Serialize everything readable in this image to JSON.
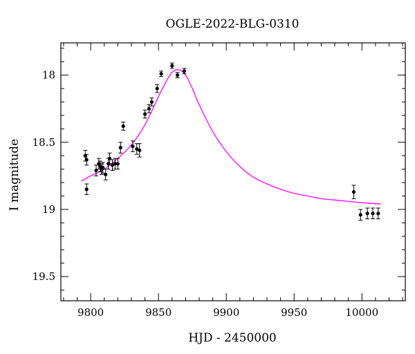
{
  "chart_data": {
    "type": "scatter",
    "title": "OGLE-2022-BLG-0310",
    "xlabel": "HJD - 2450000",
    "ylabel": "I magnitude",
    "xlim": [
      9778,
      10032
    ],
    "ylim": [
      19.68,
      17.76
    ],
    "y_inverted": true,
    "x_ticks": [
      9800,
      9850,
      9900,
      9950,
      10000
    ],
    "y_ticks": [
      18,
      18.5,
      19,
      19.5
    ],
    "x_tick_labels": [
      "9800",
      "9850",
      "9900",
      "9950",
      "10000"
    ],
    "y_tick_labels": [
      "18",
      "18.5",
      "19",
      "19.5"
    ],
    "grid": false,
    "series": [
      {
        "kind": "data_points_with_errorbars",
        "color": "#000000",
        "points": [
          {
            "x": 9796,
            "y": 18.6,
            "err": 0.04
          },
          {
            "x": 9797,
            "y": 18.63,
            "err": 0.04
          },
          {
            "x": 9797,
            "y": 18.85,
            "err": 0.04
          },
          {
            "x": 9804,
            "y": 18.71,
            "err": 0.04
          },
          {
            "x": 9806,
            "y": 18.66,
            "err": 0.04
          },
          {
            "x": 9807,
            "y": 18.68,
            "err": 0.04
          },
          {
            "x": 9808,
            "y": 18.7,
            "err": 0.04
          },
          {
            "x": 9809,
            "y": 18.69,
            "err": 0.04
          },
          {
            "x": 9811,
            "y": 18.74,
            "err": 0.04
          },
          {
            "x": 9813,
            "y": 18.66,
            "err": 0.04
          },
          {
            "x": 9814,
            "y": 18.62,
            "err": 0.04
          },
          {
            "x": 9816,
            "y": 18.67,
            "err": 0.04
          },
          {
            "x": 9818,
            "y": 18.66,
            "err": 0.04
          },
          {
            "x": 9820,
            "y": 18.66,
            "err": 0.04
          },
          {
            "x": 9822,
            "y": 18.54,
            "err": 0.04
          },
          {
            "x": 9824,
            "y": 18.38,
            "err": 0.03
          },
          {
            "x": 9831,
            "y": 18.53,
            "err": 0.04
          },
          {
            "x": 9834,
            "y": 18.55,
            "err": 0.04
          },
          {
            "x": 9836,
            "y": 18.56,
            "err": 0.05
          },
          {
            "x": 9840,
            "y": 18.29,
            "err": 0.03
          },
          {
            "x": 9843,
            "y": 18.25,
            "err": 0.03
          },
          {
            "x": 9845,
            "y": 18.2,
            "err": 0.03
          },
          {
            "x": 9849,
            "y": 18.1,
            "err": 0.03
          },
          {
            "x": 9852,
            "y": 17.99,
            "err": 0.02
          },
          {
            "x": 9860,
            "y": 17.93,
            "err": 0.02
          },
          {
            "x": 9864,
            "y": 18.0,
            "err": 0.02
          },
          {
            "x": 9869,
            "y": 17.97,
            "err": 0.02
          },
          {
            "x": 9994,
            "y": 18.87,
            "err": 0.05
          },
          {
            "x": 9999,
            "y": 19.04,
            "err": 0.04
          },
          {
            "x": 10004,
            "y": 19.03,
            "err": 0.04
          },
          {
            "x": 10008,
            "y": 19.03,
            "err": 0.04
          },
          {
            "x": 10012,
            "y": 19.03,
            "err": 0.04
          }
        ]
      },
      {
        "kind": "model_curve",
        "color": "#ff00ff",
        "x": [
          9793,
          9800,
          9810,
          9820,
          9830,
          9840,
          9850,
          9855,
          9860,
          9865,
          9870,
          9875,
          9880,
          9890,
          9900,
          9910,
          9920,
          9930,
          9940,
          9950,
          9960,
          9970,
          9980,
          9990,
          10000,
          10014
        ],
        "y": [
          18.79,
          18.75,
          18.7,
          18.62,
          18.52,
          18.37,
          18.16,
          18.06,
          17.98,
          17.96,
          18.0,
          18.1,
          18.22,
          18.42,
          18.57,
          18.68,
          18.76,
          18.81,
          18.85,
          18.88,
          18.9,
          18.92,
          18.93,
          18.94,
          18.95,
          18.96
        ]
      }
    ]
  }
}
